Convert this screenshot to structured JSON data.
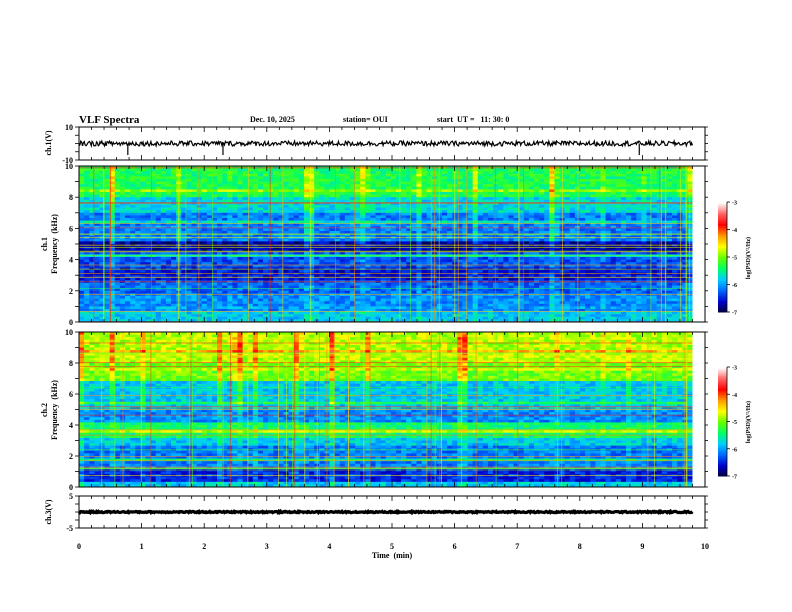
{
  "header": {
    "title": "VLF Spectra",
    "date": "Dec. 10, 2025",
    "station": "station= OUI",
    "start": "start  UT =   11: 30: 0"
  },
  "chart_data": [
    {
      "type": "line",
      "panel": "ch1-waveform",
      "ylabel": "ch.1(V)",
      "ylim": [
        -10,
        10
      ],
      "yticks": [
        "10",
        "-10"
      ],
      "x_range_min": [
        0,
        9.8
      ],
      "baseline_v": 0,
      "amplitude_v": 1.5,
      "spikes_min": [
        0.78,
        2.3,
        8.95
      ]
    },
    {
      "type": "heatmap",
      "panel": "ch1-spectrogram",
      "channel_label": "ch.1",
      "ylabel": "Frequency  (kHz)",
      "ylim": [
        0,
        10
      ],
      "yticks": [
        "0",
        "2",
        "4",
        "6",
        "8",
        "10"
      ],
      "x_range_min": [
        0,
        9.8
      ],
      "colorbar": {
        "label": "log(PSD)(V²/Hz)",
        "range": [
          -7,
          -3
        ],
        "ticks": [
          "-3",
          "-4",
          "-5",
          "-6",
          "-7"
        ]
      }
    },
    {
      "type": "heatmap",
      "panel": "ch2-spectrogram",
      "channel_label": "ch.2",
      "ylabel": "Frequency  (kHz)",
      "ylim": [
        0,
        10
      ],
      "yticks": [
        "0",
        "2",
        "4",
        "6",
        "8",
        "10"
      ],
      "x_range_min": [
        0,
        9.8
      ],
      "colorbar": {
        "label": "log(PSD)(V²/Hz)",
        "range": [
          -7,
          -3
        ],
        "ticks": [
          "-3",
          "-4",
          "-5",
          "-6",
          "-7"
        ]
      }
    },
    {
      "type": "line",
      "panel": "ch3-waveform",
      "ylabel": "ch.3(V)",
      "ylim": [
        -5,
        5
      ],
      "yticks": [
        "5",
        "-5"
      ],
      "x_range_min": [
        0,
        9.8
      ],
      "baseline_v": 0,
      "amplitude_v": 0.2
    }
  ],
  "xaxis": {
    "label": "Time  (min)",
    "range": [
      0,
      10
    ],
    "ticks": [
      "0",
      "1",
      "2",
      "3",
      "4",
      "5",
      "6",
      "7",
      "8",
      "9",
      "10"
    ]
  },
  "colors": {
    "colormap": [
      "#000033",
      "#0000cc",
      "#0066ff",
      "#00ccff",
      "#00ff66",
      "#66ff00",
      "#ffff00",
      "#ff9900",
      "#ff0000",
      "#ff6666",
      "#ffffff"
    ]
  }
}
